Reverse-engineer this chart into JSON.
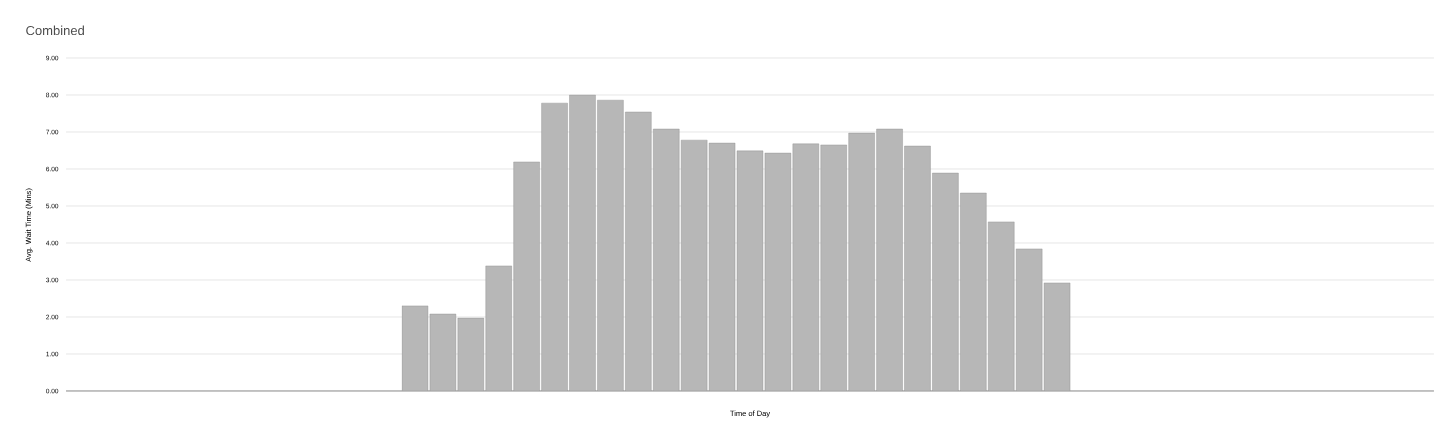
{
  "chart_data": {
    "type": "bar",
    "title": "Combined",
    "xlabel": "Time of Day",
    "ylabel": "Avg. Wait Time (Mins)",
    "categories": [
      null,
      null,
      null,
      null,
      null,
      null,
      null,
      null,
      null,
      null,
      null,
      null,
      null,
      null,
      null,
      null,
      null,
      null,
      null,
      null,
      null,
      null,
      null,
      null,
      null,
      null,
      null,
      null,
      null,
      null,
      null,
      null,
      null,
      null,
      null,
      null,
      null,
      null,
      null,
      null,
      null,
      null,
      null,
      null,
      null,
      null,
      null,
      null,
      null
    ],
    "values": [
      null,
      null,
      null,
      null,
      null,
      null,
      null,
      null,
      null,
      null,
      null,
      null,
      2.3,
      2.08,
      1.97,
      3.38,
      6.19,
      7.78,
      8.0,
      7.86,
      7.54,
      7.08,
      6.78,
      6.7,
      6.49,
      6.43,
      6.68,
      6.65,
      6.97,
      7.08,
      6.62,
      5.89,
      5.35,
      4.57,
      3.84,
      2.92,
      null,
      null,
      null,
      null,
      null,
      null,
      null,
      null,
      null,
      null,
      null,
      null,
      null
    ],
    "color": "#b7b7b7",
    "ylim": [
      0,
      9
    ],
    "yticks": [
      {
        "value": 0,
        "label": "0.00"
      },
      {
        "value": 1,
        "label": "1.00"
      },
      {
        "value": 2,
        "label": "2.00"
      },
      {
        "value": 3,
        "label": "3.00"
      },
      {
        "value": 4,
        "label": "4.00"
      },
      {
        "value": 5,
        "label": "5.00"
      },
      {
        "value": 6,
        "label": "6.00"
      },
      {
        "value": 7,
        "label": "7.00"
      },
      {
        "value": 8,
        "label": "8.00"
      },
      {
        "value": 9,
        "label": "9.00"
      }
    ],
    "grid": "y",
    "tick_labels": "y"
  }
}
